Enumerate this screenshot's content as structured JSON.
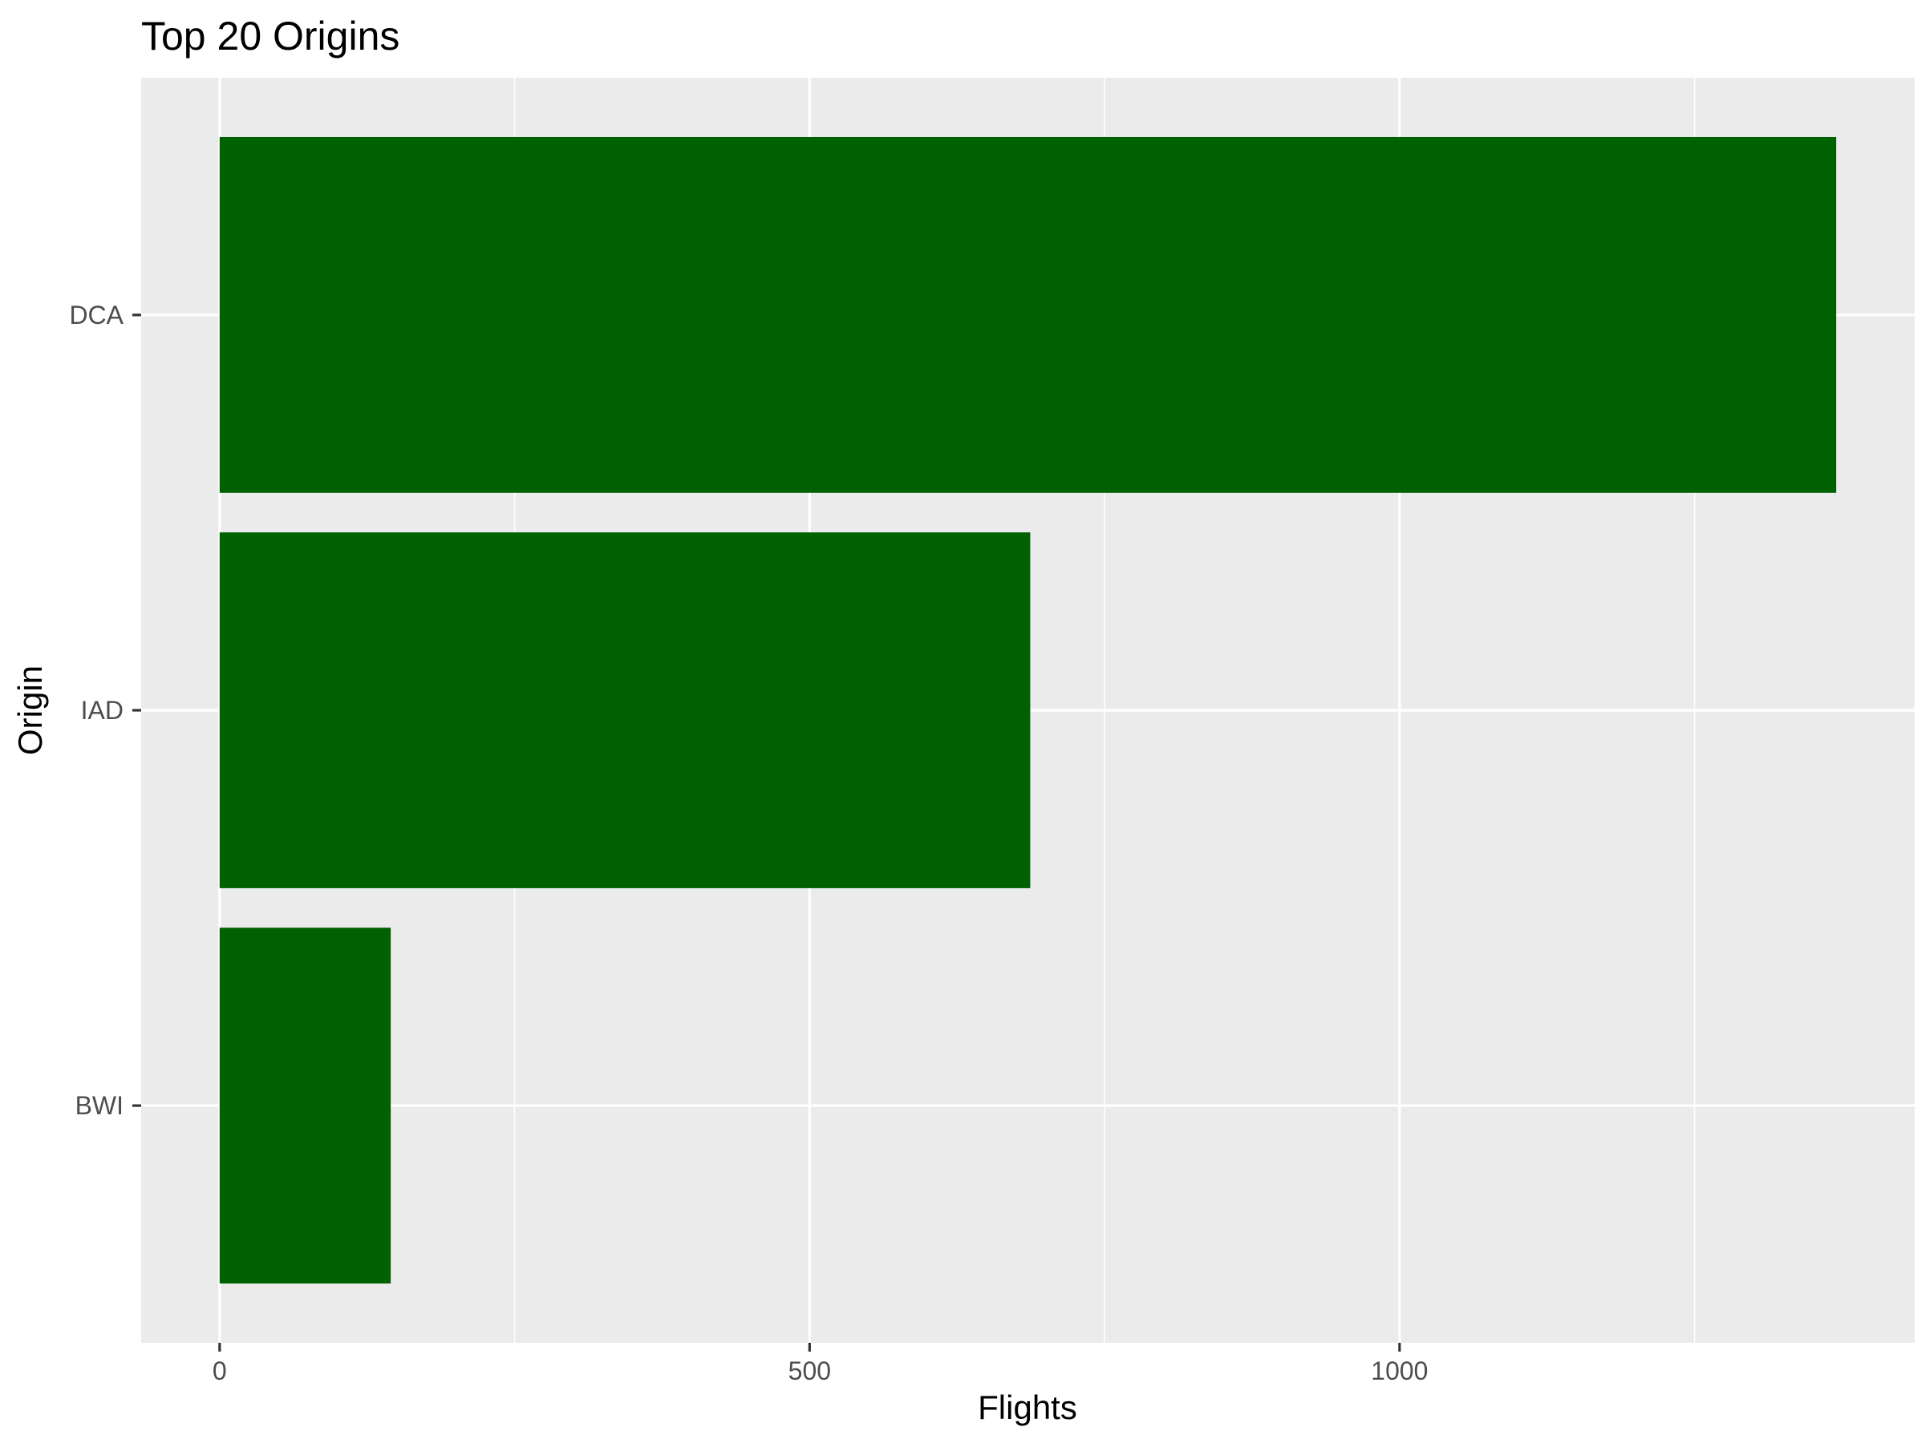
{
  "chart_data": {
    "type": "bar",
    "orientation": "horizontal",
    "title": "Top 20 Origins",
    "xlabel": "Flights",
    "ylabel": "Origin",
    "categories": [
      "DCA",
      "IAD",
      "BWI"
    ],
    "values": [
      1370,
      687,
      145
    ],
    "xlim": [
      -66.5,
      1436.5
    ],
    "xticks": [
      0,
      500,
      1000
    ],
    "xtick_labels": [
      "0",
      "500",
      "1000"
    ],
    "minor_xticks": [
      250,
      750,
      1250
    ],
    "grid": true,
    "legend": "none",
    "colors": {
      "bar": "#006100",
      "panel": "#ebebeb",
      "grid": "#ffffff",
      "tick_text": "#4d4d4d",
      "tick_mark": "#333333",
      "text": "#000000"
    }
  }
}
